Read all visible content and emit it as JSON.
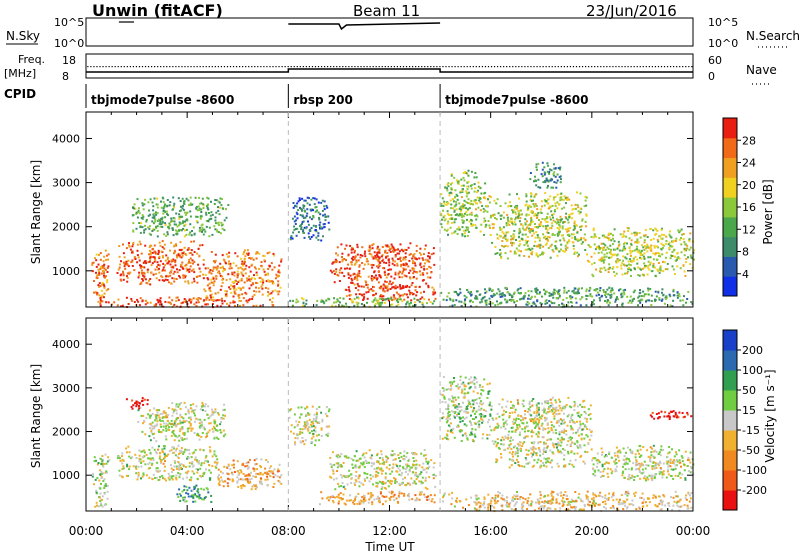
{
  "header": {
    "radar": "Unwin  (fitACF)",
    "beam": "Beam 11",
    "date": "23/Jun/2016"
  },
  "top_panels": {
    "nsky_label": "N.Sky",
    "nsky_ticks": [
      "10^5",
      "10^0"
    ],
    "nsearch_label": "N.Search",
    "nsearch_ticks": [
      "10^5",
      "10^0"
    ],
    "freq_label_line1": "Freq.",
    "freq_label_line2": "[MHz]",
    "freq_ticks": [
      "18",
      "8"
    ],
    "nave_label": "Nave",
    "nave_ticks": [
      "60",
      "0"
    ],
    "cpid_label": "CPID",
    "cpid_segments": [
      {
        "label": "tbjmode7pulse  -8600",
        "start_hour": 0,
        "end_hour": 8
      },
      {
        "label": "rbsp 200",
        "start_hour": 8,
        "end_hour": 14
      },
      {
        "label": "tbjmode7pulse  -8600",
        "start_hour": 14,
        "end_hour": 24
      }
    ]
  },
  "chart_data": [
    {
      "type": "heatmap",
      "name": "power",
      "ylabel": "Slant Range [km]",
      "xlabel": "",
      "xlim": [
        0,
        24
      ],
      "ylim": [
        180,
        4600
      ],
      "yticks": [
        "1000",
        "2000",
        "3000",
        "4000"
      ],
      "colorbar_label": "Power [dB]",
      "colorbar_ticks": [
        "4",
        "8",
        "12",
        "16",
        "20",
        "24",
        "28"
      ],
      "colorbar_colors": [
        "#1030e8",
        "#2a5ab0",
        "#3c8c6c",
        "#4aa84a",
        "#8cc83c",
        "#f0d020",
        "#f0a020",
        "#f06a18",
        "#e81e10"
      ],
      "scatter_regions": [
        {
          "x": [
            0.2,
            0.9
          ],
          "y": [
            300,
            1500
          ],
          "level": 0.8
        },
        {
          "x": [
            1.2,
            4.6
          ],
          "y": [
            700,
            1700
          ],
          "level": 0.85
        },
        {
          "x": [
            4.6,
            7.7
          ],
          "y": [
            400,
            1500
          ],
          "level": 0.8
        },
        {
          "x": [
            1.8,
            5.6
          ],
          "y": [
            1800,
            2700
          ],
          "level": 0.4
        },
        {
          "x": [
            0.5,
            7.5
          ],
          "y": [
            200,
            420
          ],
          "level": 0.9
        },
        {
          "x": [
            8.0,
            9.6
          ],
          "y": [
            1700,
            2700
          ],
          "level": 0.2
        },
        {
          "x": [
            9.6,
            13.8
          ],
          "y": [
            650,
            1650
          ],
          "level": 0.9
        },
        {
          "x": [
            10.2,
            13.8
          ],
          "y": [
            350,
            700
          ],
          "level": 0.9
        },
        {
          "x": [
            8.0,
            13.8
          ],
          "y": [
            200,
            420
          ],
          "level": 0.45
        },
        {
          "x": [
            14.0,
            15.8
          ],
          "y": [
            1800,
            3300
          ],
          "level": 0.5
        },
        {
          "x": [
            15.8,
            19.8
          ],
          "y": [
            1300,
            2800
          ],
          "level": 0.55
        },
        {
          "x": [
            19.8,
            24.0
          ],
          "y": [
            900,
            2000
          ],
          "level": 0.55
        },
        {
          "x": [
            14.0,
            24.0
          ],
          "y": [
            200,
            650
          ],
          "level": 0.35
        },
        {
          "x": [
            17.5,
            18.8
          ],
          "y": [
            2900,
            3500
          ],
          "level": 0.3
        }
      ]
    },
    {
      "type": "heatmap",
      "name": "velocity",
      "ylabel": "Slant Range [km]",
      "xlabel": "Time UT",
      "xlim": [
        0,
        24
      ],
      "ylim": [
        180,
        4600
      ],
      "yticks": [
        "1000",
        "2000",
        "3000",
        "4000"
      ],
      "xticks": [
        "00:00",
        "04:00",
        "08:00",
        "12:00",
        "16:00",
        "20:00",
        "00:00"
      ],
      "colorbar_label": "Velocity [m s⁻¹]",
      "colorbar_ticks": [
        "200",
        "100",
        "50",
        "15",
        "-15",
        "-50",
        "-100",
        "-200"
      ],
      "colorbar_colors": [
        "#1840c8",
        "#2a6ab0",
        "#30a050",
        "#70cc40",
        "#c8c8c8",
        "#f0b030",
        "#f08a20",
        "#f05a18",
        "#e81010"
      ],
      "scatter_regions": [
        {
          "x": [
            0.2,
            0.9
          ],
          "y": [
            300,
            1500
          ],
          "level": 0.45
        },
        {
          "x": [
            1.2,
            5.2
          ],
          "y": [
            900,
            1700
          ],
          "level": 0.5
        },
        {
          "x": [
            5.2,
            7.7
          ],
          "y": [
            700,
            1400
          ],
          "level": 0.65
        },
        {
          "x": [
            3.5,
            5.0
          ],
          "y": [
            400,
            800
          ],
          "level": 0.3
        },
        {
          "x": [
            2.0,
            5.5
          ],
          "y": [
            1800,
            2700
          ],
          "level": 0.5
        },
        {
          "x": [
            8.0,
            9.6
          ],
          "y": [
            1700,
            2600
          ],
          "level": 0.5
        },
        {
          "x": [
            9.6,
            13.8
          ],
          "y": [
            700,
            1600
          ],
          "level": 0.5
        },
        {
          "x": [
            9.0,
            13.8
          ],
          "y": [
            350,
            650
          ],
          "level": 0.65
        },
        {
          "x": [
            14.0,
            16.0
          ],
          "y": [
            1800,
            3300
          ],
          "level": 0.45
        },
        {
          "x": [
            16.0,
            20.0
          ],
          "y": [
            1200,
            2800
          ],
          "level": 0.5
        },
        {
          "x": [
            20.0,
            24.0
          ],
          "y": [
            900,
            1700
          ],
          "level": 0.5
        },
        {
          "x": [
            22.2,
            24.0
          ],
          "y": [
            2300,
            2500
          ],
          "level": 1.0
        },
        {
          "x": [
            14.0,
            24.0
          ],
          "y": [
            200,
            650
          ],
          "level": 0.6
        },
        {
          "x": [
            1.5,
            2.5
          ],
          "y": [
            2500,
            2800
          ],
          "level": 1.0
        }
      ]
    }
  ]
}
